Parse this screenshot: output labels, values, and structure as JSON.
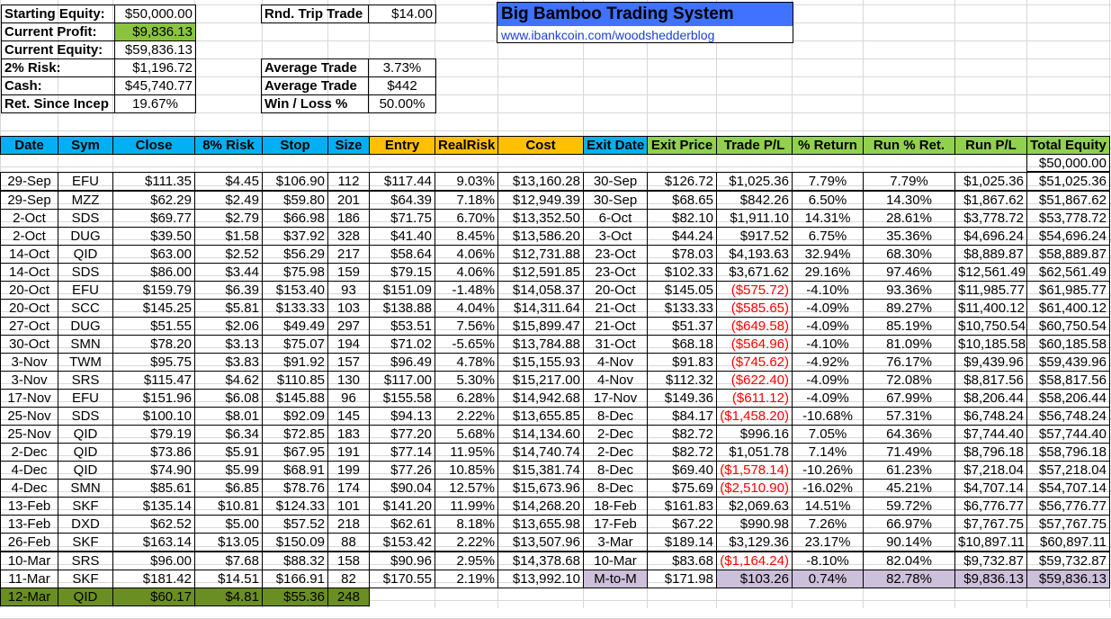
{
  "summary": {
    "starting_equity_label": "Starting Equity:",
    "starting_equity": "$50,000.00",
    "current_profit_label": "Current Profit:",
    "current_profit": "$9,836.13",
    "current_equity_label": "Current Equity:",
    "current_equity": "$59,836.13",
    "risk_label": "2% Risk:",
    "risk": "$1,196.72",
    "cash_label": "Cash:",
    "cash": "$45,740.77",
    "ret_label": "Ret. Since Incep",
    "ret": "19.67%",
    "rnd_trip_label": "Rnd. Trip Trade",
    "rnd_trip": "$14.00",
    "avg_trade_pct_label": "Average Trade",
    "avg_trade_pct": "3.73%",
    "avg_trade_usd_label": "Average Trade",
    "avg_trade_usd": "$442",
    "winloss_label": "Win / Loss %",
    "winloss": "50.00%"
  },
  "brand": {
    "title": "Big Bamboo Trading System",
    "link": "www.ibankcoin.com/woodshedderblog"
  },
  "headers": [
    "Date",
    "Sym",
    "Close",
    "8% Risk",
    "Stop",
    "Size",
    "Entry",
    "RealRisk",
    "Cost",
    "Exit Date",
    "Exit Price",
    "Trade P/L",
    "% Return",
    "Run % Ret.",
    "Run P/L",
    "Total Equity"
  ],
  "initial_equity": "$50,000.00",
  "trades": [
    [
      "29-Sep",
      "EFU",
      "$111.35",
      "$4.45",
      "$106.90",
      "112",
      "$117.44",
      "9.03%",
      "$13,160.28",
      "30-Sep",
      "$126.72",
      "$1,025.36",
      "7.79%",
      "7.79%",
      "$1,025.36",
      "$51,025.36"
    ],
    [
      "29-Sep",
      "MZZ",
      "$62.29",
      "$2.49",
      "$59.80",
      "201",
      "$64.39",
      "7.18%",
      "$12,949.39",
      "30-Sep",
      "$68.65",
      "$842.26",
      "6.50%",
      "14.30%",
      "$1,867.62",
      "$51,867.62"
    ],
    [
      "2-Oct",
      "SDS",
      "$69.77",
      "$2.79",
      "$66.98",
      "186",
      "$71.75",
      "6.70%",
      "$13,352.50",
      "6-Oct",
      "$82.10",
      "$1,911.10",
      "14.31%",
      "28.61%",
      "$3,778.72",
      "$53,778.72"
    ],
    [
      "2-Oct",
      "DUG",
      "$39.50",
      "$1.58",
      "$37.92",
      "328",
      "$41.40",
      "8.45%",
      "$13,586.20",
      "3-Oct",
      "$44.24",
      "$917.52",
      "6.75%",
      "35.36%",
      "$4,696.24",
      "$54,696.24"
    ],
    [
      "14-Oct",
      "QID",
      "$63.00",
      "$2.52",
      "$56.29",
      "217",
      "$58.64",
      "4.06%",
      "$12,731.88",
      "23-Oct",
      "$78.03",
      "$4,193.63",
      "32.94%",
      "68.30%",
      "$8,889.87",
      "$58,889.87"
    ],
    [
      "14-Oct",
      "SDS",
      "$86.00",
      "$3.44",
      "$75.98",
      "159",
      "$79.15",
      "4.06%",
      "$12,591.85",
      "23-Oct",
      "$102.33",
      "$3,671.62",
      "29.16%",
      "97.46%",
      "$12,561.49",
      "$62,561.49"
    ],
    [
      "20-Oct",
      "EFU",
      "$159.79",
      "$6.39",
      "$153.40",
      "93",
      "$151.09",
      "-1.48%",
      "$14,058.37",
      "20-Oct",
      "$145.05",
      "($575.72)",
      "-4.10%",
      "93.36%",
      "$11,985.77",
      "$61,985.77"
    ],
    [
      "20-Oct",
      "SCC",
      "$145.25",
      "$5.81",
      "$133.33",
      "103",
      "$138.88",
      "4.04%",
      "$14,311.64",
      "21-Oct",
      "$133.33",
      "($585.65)",
      "-4.09%",
      "89.27%",
      "$11,400.12",
      "$61,400.12"
    ],
    [
      "27-Oct",
      "DUG",
      "$51.55",
      "$2.06",
      "$49.49",
      "297",
      "$53.51",
      "7.56%",
      "$15,899.47",
      "21-Oct",
      "$51.37",
      "($649.58)",
      "-4.09%",
      "85.19%",
      "$10,750.54",
      "$60,750.54"
    ],
    [
      "30-Oct",
      "SMN",
      "$78.20",
      "$3.13",
      "$75.07",
      "194",
      "$71.02",
      "-5.65%",
      "$13,784.88",
      "31-Oct",
      "$68.18",
      "($564.96)",
      "-4.10%",
      "81.09%",
      "$10,185.58",
      "$60,185.58"
    ],
    [
      "3-Nov",
      "TWM",
      "$95.75",
      "$3.83",
      "$91.92",
      "157",
      "$96.49",
      "4.78%",
      "$15,155.93",
      "4-Nov",
      "$91.83",
      "($745.62)",
      "-4.92%",
      "76.17%",
      "$9,439.96",
      "$59,439.96"
    ],
    [
      "3-Nov",
      "SRS",
      "$115.47",
      "$4.62",
      "$110.85",
      "130",
      "$117.00",
      "5.30%",
      "$15,217.00",
      "4-Nov",
      "$112.32",
      "($622.40)",
      "-4.09%",
      "72.08%",
      "$8,817.56",
      "$58,817.56"
    ],
    [
      "17-Nov",
      "EFU",
      "$151.96",
      "$6.08",
      "$145.88",
      "96",
      "$155.58",
      "6.28%",
      "$14,942.68",
      "17-Nov",
      "$149.36",
      "($611.12)",
      "-4.09%",
      "67.99%",
      "$8,206.44",
      "$58,206.44"
    ],
    [
      "25-Nov",
      "SDS",
      "$100.10",
      "$8.01",
      "$92.09",
      "145",
      "$94.13",
      "2.22%",
      "$13,655.85",
      "8-Dec",
      "$84.17",
      "($1,458.20)",
      "-10.68%",
      "57.31%",
      "$6,748.24",
      "$56,748.24"
    ],
    [
      "25-Nov",
      "QID",
      "$79.19",
      "$6.34",
      "$72.85",
      "183",
      "$77.20",
      "5.68%",
      "$14,134.60",
      "2-Dec",
      "$82.72",
      "$996.16",
      "7.05%",
      "64.36%",
      "$7,744.40",
      "$57,744.40"
    ],
    [
      "2-Dec",
      "QID",
      "$73.86",
      "$5.91",
      "$67.95",
      "191",
      "$77.14",
      "11.95%",
      "$14,740.74",
      "2-Dec",
      "$82.72",
      "$1,051.78",
      "7.14%",
      "71.49%",
      "$8,796.18",
      "$58,796.18"
    ],
    [
      "4-Dec",
      "QID",
      "$74.90",
      "$5.99",
      "$68.91",
      "199",
      "$77.26",
      "10.85%",
      "$15,381.74",
      "8-Dec",
      "$69.40",
      "($1,578.14)",
      "-10.26%",
      "61.23%",
      "$7,218.04",
      "$57,218.04"
    ],
    [
      "4-Dec",
      "SMN",
      "$85.61",
      "$6.85",
      "$78.76",
      "174",
      "$90.04",
      "12.57%",
      "$15,673.96",
      "8-Dec",
      "$75.69",
      "($2,510.90)",
      "-16.02%",
      "45.21%",
      "$4,707.14",
      "$54,707.14"
    ],
    [
      "13-Feb",
      "SKF",
      "$135.14",
      "$10.81",
      "$124.33",
      "101",
      "$141.20",
      "11.99%",
      "$14,268.20",
      "18-Feb",
      "$161.83",
      "$2,069.63",
      "14.51%",
      "59.72%",
      "$6,776.77",
      "$56,776.77"
    ],
    [
      "13-Feb",
      "DXD",
      "$62.52",
      "$5.00",
      "$57.52",
      "218",
      "$62.61",
      "8.18%",
      "$13,655.98",
      "17-Feb",
      "$67.22",
      "$990.98",
      "7.26%",
      "66.97%",
      "$7,767.75",
      "$57,767.75"
    ],
    [
      "26-Feb",
      "SKF",
      "$163.14",
      "$13.05",
      "$150.09",
      "88",
      "$153.42",
      "2.22%",
      "$13,507.96",
      "3-Mar",
      "$189.14",
      "$3,129.36",
      "23.17%",
      "90.14%",
      "$10,897.11",
      "$60,897.11"
    ],
    [
      "10-Mar",
      "SRS",
      "$96.00",
      "$7.68",
      "$88.32",
      "158",
      "$90.96",
      "2.95%",
      "$14,378.68",
      "10-Mar",
      "$83.68",
      "($1,164.24)",
      "-8.10%",
      "82.04%",
      "$9,732.87",
      "$59,732.87"
    ],
    [
      "11-Mar",
      "SKF",
      "$181.42",
      "$14.51",
      "$166.91",
      "82",
      "$170.55",
      "2.19%",
      "$13,992.10",
      "M-to-M",
      "$171.98",
      "$103.26",
      "0.74%",
      "82.78%",
      "$9,836.13",
      "$59,836.13"
    ]
  ],
  "pending": [
    "12-Mar",
    "QID",
    "$60.17",
    "$4.81",
    "$55.36",
    "248"
  ],
  "colors": {
    "header_cyan": "#00b0f0",
    "header_gold": "#ffc000",
    "header_green": "#92d050",
    "profit_green": "#8ac43f",
    "pending_olive": "#6b8e23",
    "mtm_lavender": "#ccc0da",
    "brand_blue": "#3f72ff",
    "negative": "#ff0000"
  }
}
